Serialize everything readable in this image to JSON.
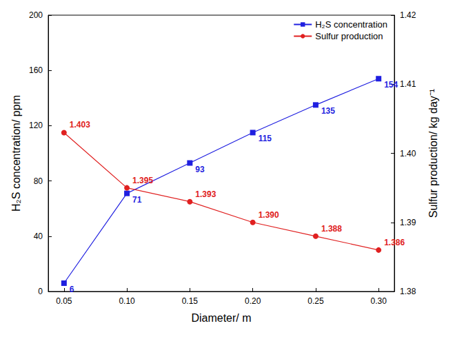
{
  "chart_data": {
    "type": "line",
    "x_label": "Diameter/ m",
    "y_label": "H₂S concentration/ ppm",
    "y2_label": "Sulfur production/ kg day⁻¹",
    "x": [
      0.05,
      0.1,
      0.15,
      0.2,
      0.25,
      0.3
    ],
    "series": [
      {
        "name": "H₂S concentration",
        "color": "#1f1fe0",
        "marker": "square",
        "axis": "y",
        "values": [
          6,
          71,
          93,
          115,
          135,
          154
        ]
      },
      {
        "name": "Sulfur production",
        "color": "#e02020",
        "marker": "circle",
        "axis": "y2",
        "values": [
          1.403,
          1.395,
          1.393,
          1.39,
          1.388,
          1.386
        ],
        "value_labels": [
          "1.403",
          "1.395",
          "1.393",
          "1.390",
          "1.388",
          "1.386"
        ]
      }
    ],
    "xlim": [
      0.0375,
      0.3125
    ],
    "xticks": [
      0.05,
      {
        "value": 0.1,
        "label": "0.10"
      },
      0.15,
      {
        "value": 0.2,
        "label": "0.20"
      },
      0.25,
      {
        "value": 0.3,
        "label": "0.30"
      }
    ],
    "ylim": [
      0,
      200
    ],
    "yticks": [
      0,
      40,
      80,
      120,
      160,
      200
    ],
    "y2lim": [
      1.38,
      1.42
    ],
    "y2ticks": [
      1.38,
      1.39,
      {
        "value": 1.4,
        "label": "1.40"
      },
      1.41,
      1.42
    ],
    "grid": false,
    "legend": "upper right",
    "data_labels": true
  }
}
